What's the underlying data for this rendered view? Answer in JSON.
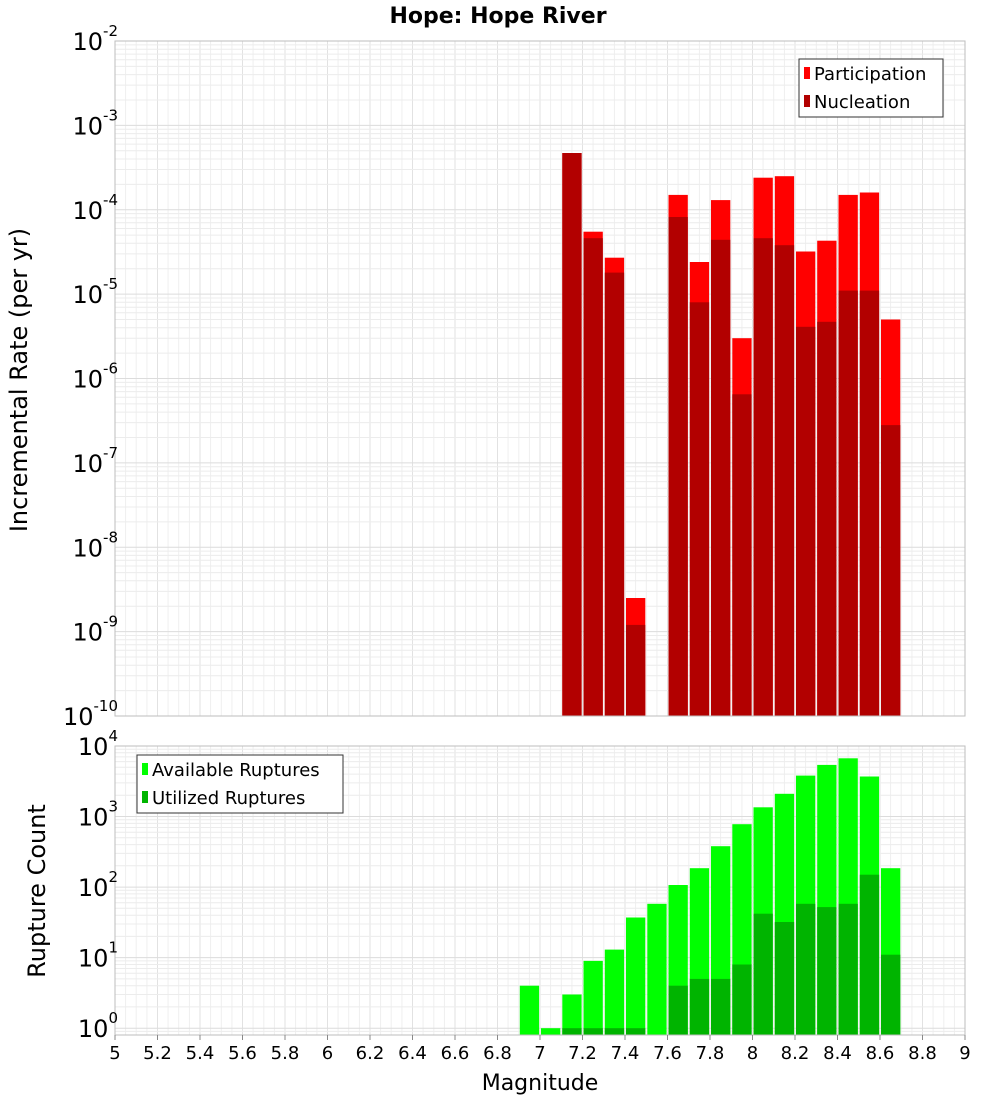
{
  "chart_data": [
    {
      "type": "bar",
      "title": "Hope: Hope River",
      "xlabel": "Magnitude",
      "ylabel": "Incremental Rate (per yr)",
      "yscale": "log",
      "ylim": [
        1e-10,
        0.01
      ],
      "xlim": [
        5,
        9
      ],
      "grid": true,
      "legend_position": "top-right",
      "overlay": true,
      "y_ticks": [
        {
          "base": "10",
          "exp": "-10"
        },
        {
          "base": "10",
          "exp": "-9"
        },
        {
          "base": "10",
          "exp": "-8"
        },
        {
          "base": "10",
          "exp": "-7"
        },
        {
          "base": "10",
          "exp": "-6"
        },
        {
          "base": "10",
          "exp": "-5"
        },
        {
          "base": "10",
          "exp": "-4"
        },
        {
          "base": "10",
          "exp": "-3"
        },
        {
          "base": "10",
          "exp": "-2"
        }
      ],
      "x": [
        7.15,
        7.25,
        7.35,
        7.45,
        7.65,
        7.75,
        7.85,
        7.95,
        8.05,
        8.15,
        8.25,
        8.35,
        8.45,
        8.55,
        8.65
      ],
      "series": [
        {
          "name": "Participation",
          "color": "#ff0000",
          "values": [
            0.00047,
            5.5e-05,
            2.7e-05,
            2.5e-09,
            0.00015,
            2.4e-05,
            0.00013,
            3e-06,
            0.00024,
            0.00025,
            3.2e-05,
            4.3e-05,
            0.00015,
            0.00016,
            5e-06
          ]
        },
        {
          "name": "Nucleation",
          "color": "#b20000",
          "values": [
            0.00047,
            4.6e-05,
            1.8e-05,
            1.2e-09,
            8.2e-05,
            8e-06,
            4.4e-05,
            6.5e-07,
            4.6e-05,
            3.8e-05,
            4.1e-06,
            4.7e-06,
            1.1e-05,
            1.1e-05,
            2.8e-07
          ]
        }
      ]
    },
    {
      "type": "bar",
      "xlabel": "Magnitude",
      "ylabel": "Rupture Count",
      "yscale": "log",
      "ylim": [
        0.8,
        10000.0
      ],
      "xlim": [
        5,
        9
      ],
      "grid": true,
      "legend_position": "top-left",
      "overlay": true,
      "y_ticks": [
        {
          "value": 1,
          "base": "10",
          "exp": "0"
        },
        {
          "value": 10,
          "base": "10",
          "exp": "1"
        },
        {
          "value": 100,
          "base": "10",
          "exp": "2"
        },
        {
          "value": 1000,
          "base": "10",
          "exp": "3"
        },
        {
          "value": 10000,
          "base": "10",
          "exp": "4"
        }
      ],
      "x_ticks": [
        "5",
        "5.2",
        "5.4",
        "5.6",
        "5.8",
        "6",
        "6.2",
        "6.4",
        "6.6",
        "6.8",
        "7",
        "7.2",
        "7.4",
        "7.6",
        "7.8",
        "8",
        "8.2",
        "8.4",
        "8.6",
        "8.8",
        "9"
      ],
      "x": [
        6.95,
        7.05,
        7.15,
        7.25,
        7.35,
        7.45,
        7.55,
        7.65,
        7.75,
        7.85,
        7.95,
        8.05,
        8.15,
        8.25,
        8.35,
        8.45,
        8.55,
        8.65
      ],
      "series": [
        {
          "name": "Available Ruptures",
          "color": "#00ff00",
          "values": [
            4,
            1,
            3,
            9,
            13,
            37,
            58,
            107,
            185,
            380,
            780,
            1350,
            2100,
            3800,
            5400,
            6700,
            3700,
            185
          ]
        },
        {
          "name": "Utilized Ruptures",
          "color": "#00b400",
          "values": [
            0,
            0,
            1,
            1,
            1,
            1,
            0,
            4,
            5,
            5,
            8,
            42,
            32,
            58,
            52,
            58,
            150,
            11
          ]
        }
      ]
    }
  ]
}
